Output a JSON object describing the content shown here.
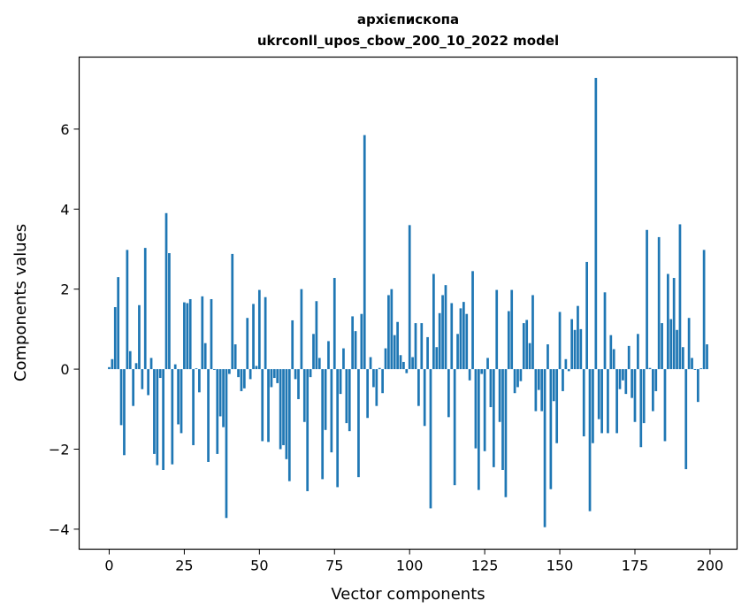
{
  "chart_data": {
    "type": "bar",
    "title_lines": [
      "архієпископа",
      "ukrconll_upos_cbow_200_10_2022 model"
    ],
    "xlabel": "Vector components",
    "ylabel": "Components values",
    "xlim": [
      -10,
      209
    ],
    "ylim": [
      -4.5,
      7.8
    ],
    "x_ticks": [
      0,
      25,
      50,
      75,
      100,
      125,
      150,
      175,
      200
    ],
    "y_ticks": [
      -4,
      -2,
      0,
      2,
      4,
      6
    ],
    "y_tick_labels": [
      "−4",
      "−2",
      "0",
      "2",
      "4",
      "6"
    ],
    "bar_color": "#1f77b4",
    "values": [
      0.05,
      0.25,
      1.55,
      2.3,
      -1.4,
      -2.15,
      2.98,
      0.45,
      -0.92,
      0.15,
      1.6,
      -0.5,
      3.03,
      -0.65,
      0.28,
      -2.12,
      -2.4,
      -0.22,
      -2.52,
      3.9,
      2.9,
      -2.38,
      0.12,
      -1.38,
      -1.6,
      1.67,
      1.65,
      1.75,
      -1.9,
      0.02,
      -0.58,
      1.82,
      0.65,
      -2.32,
      1.75,
      -0.02,
      -2.12,
      -1.18,
      -1.45,
      -3.72,
      -0.12,
      2.88,
      0.62,
      -0.2,
      -0.55,
      -0.48,
      1.28,
      -0.25,
      1.63,
      0.08,
      1.98,
      -1.8,
      1.8,
      -1.82,
      -0.45,
      -0.22,
      -0.35,
      -2.0,
      -1.9,
      -2.25,
      -2.8,
      1.22,
      -0.25,
      -0.75,
      2.0,
      -1.32,
      -3.05,
      -0.2,
      0.88,
      1.7,
      0.28,
      -2.75,
      -1.52,
      0.7,
      -2.08,
      2.28,
      -2.95,
      -0.62,
      0.52,
      -1.35,
      -1.55,
      1.32,
      0.95,
      -2.7,
      1.38,
      5.85,
      -1.22,
      0.3,
      -0.45,
      -0.92,
      0.03,
      -0.6,
      0.52,
      1.85,
      2.0,
      0.85,
      1.18,
      0.35,
      0.18,
      -0.1,
      3.6,
      0.3,
      1.15,
      -0.92,
      1.15,
      -1.42,
      0.8,
      -3.48,
      2.38,
      0.55,
      1.4,
      1.85,
      2.1,
      -1.2,
      1.65,
      -2.9,
      0.88,
      1.52,
      1.68,
      1.38,
      -0.28,
      2.45,
      -1.98,
      -3.02,
      -0.12,
      -2.05,
      0.28,
      -0.95,
      -2.45,
      1.98,
      -1.32,
      -2.52,
      -3.2,
      1.45,
      1.98,
      -0.6,
      -0.45,
      -0.3,
      1.15,
      1.23,
      0.65,
      1.85,
      -1.05,
      -0.52,
      -1.05,
      -3.95,
      0.62,
      -3.0,
      -0.8,
      -1.85,
      1.43,
      -0.55,
      0.25,
      -0.05,
      1.25,
      0.98,
      1.58,
      1.0,
      -1.68,
      2.68,
      -3.55,
      -1.85,
      7.28,
      -1.25,
      -1.6,
      1.92,
      -1.6,
      0.85,
      0.5,
      -1.6,
      -0.5,
      -0.28,
      -0.62,
      0.58,
      -0.72,
      -1.32,
      0.88,
      -1.95,
      -1.35,
      3.48,
      0.03,
      -1.05,
      -0.55,
      3.3,
      1.15,
      -1.8,
      2.38,
      1.25,
      2.28,
      0.98,
      3.62,
      0.55,
      -2.5,
      1.28,
      0.28,
      -0.02,
      -0.82,
      0.02,
      2.98,
      0.62
    ]
  }
}
